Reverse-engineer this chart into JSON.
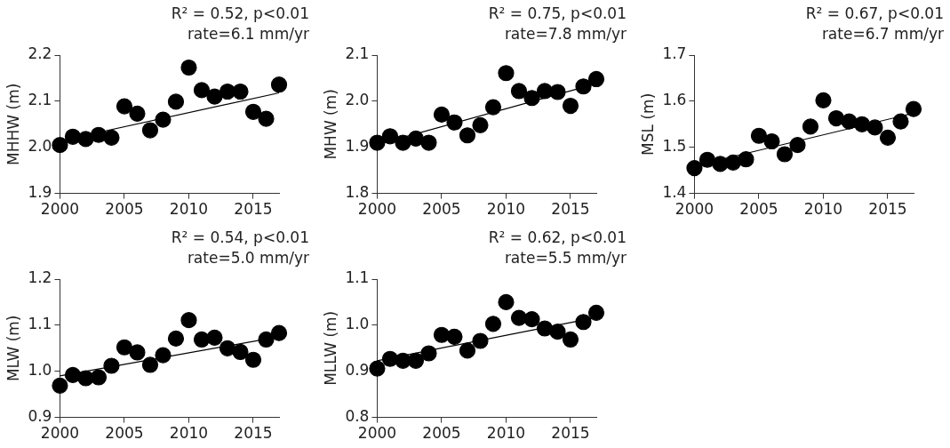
{
  "chart_data": [
    {
      "type": "scatter",
      "ylabel": "MHHW (m)",
      "annotations": [
        "R² = 0.52, p<0.01",
        "rate=6.1 mm/yr"
      ],
      "xlim": [
        2000,
        2017
      ],
      "xticks": [
        2000,
        2005,
        2010,
        2015
      ],
      "ylim": [
        1.9,
        2.2
      ],
      "yticks": [
        {
          "value": 1.9,
          "label": "1.9"
        },
        {
          "value": 2.0,
          "label": "2.0"
        },
        {
          "value": 2.1,
          "label": "2.1"
        },
        {
          "value": 2.2,
          "label": "2.2"
        }
      ],
      "grid": false,
      "marker": "circle",
      "series": [
        {
          "type": "scatter",
          "color": "#000000",
          "x": [
            2000,
            2001,
            2002,
            2003,
            2004,
            2005,
            2006,
            2007,
            2008,
            2009,
            2010,
            2011,
            2012,
            2013,
            2014,
            2015,
            2016,
            2017
          ],
          "values": [
            2.005,
            2.023,
            2.018,
            2.027,
            2.021,
            2.089,
            2.073,
            2.037,
            2.06,
            2.099,
            2.173,
            2.124,
            2.11,
            2.121,
            2.121,
            2.077,
            2.062,
            2.136
          ]
        },
        {
          "type": "line",
          "color": "#000000",
          "marker": "none",
          "line_style": "solid",
          "x": [
            2000,
            2017
          ],
          "values": [
            2.014,
            2.118
          ]
        }
      ]
    },
    {
      "type": "scatter",
      "ylabel": "MHW (m)",
      "annotations": [
        "R² = 0.75, p<0.01",
        "rate=7.8 mm/yr"
      ],
      "xlim": [
        2000,
        2017
      ],
      "xticks": [
        2000,
        2005,
        2010,
        2015
      ],
      "ylim": [
        1.8,
        2.1
      ],
      "yticks": [
        {
          "value": 1.8,
          "label": "1.8"
        },
        {
          "value": 1.9,
          "label": "1.9"
        },
        {
          "value": 2.0,
          "label": "2.0"
        },
        {
          "value": 2.1,
          "label": "2.1"
        }
      ],
      "grid": false,
      "marker": "circle",
      "series": [
        {
          "type": "scatter",
          "color": "#000000",
          "x": [
            2000,
            2001,
            2002,
            2003,
            2004,
            2005,
            2006,
            2007,
            2008,
            2009,
            2010,
            2011,
            2012,
            2013,
            2014,
            2015,
            2016,
            2017
          ],
          "values": [
            1.91,
            1.924,
            1.91,
            1.919,
            1.91,
            1.971,
            1.954,
            1.926,
            1.948,
            1.987,
            2.061,
            2.022,
            2.007,
            2.022,
            2.02,
            1.99,
            2.032,
            2.048
          ]
        },
        {
          "type": "line",
          "color": "#000000",
          "marker": "none",
          "line_style": "solid",
          "x": [
            2000,
            2017
          ],
          "values": [
            1.906,
            2.038
          ]
        }
      ]
    },
    {
      "type": "scatter",
      "ylabel": "MSL (m)",
      "annotations": [
        "R² = 0.67, p<0.01",
        "rate=6.7 mm/yr"
      ],
      "xlim": [
        2000,
        2017
      ],
      "xticks": [
        2000,
        2005,
        2010,
        2015
      ],
      "ylim": [
        1.4,
        1.7
      ],
      "yticks": [
        {
          "value": 1.4,
          "label": "1.4"
        },
        {
          "value": 1.5,
          "label": "1.5"
        },
        {
          "value": 1.6,
          "label": "1.6"
        },
        {
          "value": 1.7,
          "label": "1.7"
        }
      ],
      "grid": false,
      "marker": "circle",
      "series": [
        {
          "type": "scatter",
          "color": "#000000",
          "x": [
            2000,
            2001,
            2002,
            2003,
            2004,
            2005,
            2006,
            2007,
            2008,
            2009,
            2010,
            2011,
            2012,
            2013,
            2014,
            2015,
            2016,
            2017
          ],
          "values": [
            1.455,
            1.473,
            1.464,
            1.467,
            1.474,
            1.525,
            1.513,
            1.485,
            1.505,
            1.545,
            1.602,
            1.563,
            1.556,
            1.55,
            1.543,
            1.521,
            1.556,
            1.583
          ]
        },
        {
          "type": "line",
          "color": "#000000",
          "marker": "none",
          "line_style": "solid",
          "x": [
            2000,
            2017
          ],
          "values": [
            1.46,
            1.574
          ]
        }
      ]
    },
    {
      "type": "scatter",
      "ylabel": "MLW (m)",
      "annotations": [
        "R² = 0.54, p<0.01",
        "rate=5.0 mm/yr"
      ],
      "xlim": [
        2000,
        2017
      ],
      "xticks": [
        2000,
        2005,
        2010,
        2015
      ],
      "ylim": [
        0.9,
        1.2
      ],
      "yticks": [
        {
          "value": 0.9,
          "label": "0.9"
        },
        {
          "value": 1.0,
          "label": "1.0"
        },
        {
          "value": 1.1,
          "label": "1.1"
        },
        {
          "value": 1.2,
          "label": "1.2"
        }
      ],
      "grid": false,
      "marker": "circle",
      "series": [
        {
          "type": "scatter",
          "color": "#000000",
          "x": [
            2000,
            2001,
            2002,
            2003,
            2004,
            2005,
            2006,
            2007,
            2008,
            2009,
            2010,
            2011,
            2012,
            2013,
            2014,
            2015,
            2016,
            2017
          ],
          "values": [
            0.969,
            0.992,
            0.985,
            0.987,
            1.012,
            1.052,
            1.041,
            1.014,
            1.035,
            1.071,
            1.111,
            1.069,
            1.073,
            1.05,
            1.042,
            1.025,
            1.069,
            1.083
          ]
        },
        {
          "type": "line",
          "color": "#000000",
          "marker": "none",
          "line_style": "solid",
          "x": [
            2000,
            2017
          ],
          "values": [
            0.99,
            1.075
          ]
        }
      ]
    },
    {
      "type": "scatter",
      "ylabel": "MLLW (m)",
      "annotations": [
        "R² = 0.62, p<0.01",
        "rate=5.5 mm/yr"
      ],
      "xlim": [
        2000,
        2017
      ],
      "xticks": [
        2000,
        2005,
        2010,
        2015
      ],
      "ylim": [
        0.8,
        1.1
      ],
      "yticks": [
        {
          "value": 0.8,
          "label": "0.8"
        },
        {
          "value": 0.9,
          "label": "0.9"
        },
        {
          "value": 1.0,
          "label": "1.0"
        },
        {
          "value": 1.1,
          "label": "1.1"
        }
      ],
      "grid": false,
      "marker": "circle",
      "series": [
        {
          "type": "scatter",
          "color": "#000000",
          "x": [
            2000,
            2001,
            2002,
            2003,
            2004,
            2005,
            2006,
            2007,
            2008,
            2009,
            2010,
            2011,
            2012,
            2013,
            2014,
            2015,
            2016,
            2017
          ],
          "values": [
            0.906,
            0.927,
            0.923,
            0.923,
            0.939,
            0.979,
            0.975,
            0.945,
            0.966,
            1.003,
            1.05,
            1.016,
            1.013,
            0.993,
            0.986,
            0.969,
            1.007,
            1.027
          ]
        },
        {
          "type": "line",
          "color": "#000000",
          "marker": "none",
          "line_style": "solid",
          "x": [
            2000,
            2017
          ],
          "values": [
            0.923,
            1.017
          ]
        }
      ]
    }
  ]
}
